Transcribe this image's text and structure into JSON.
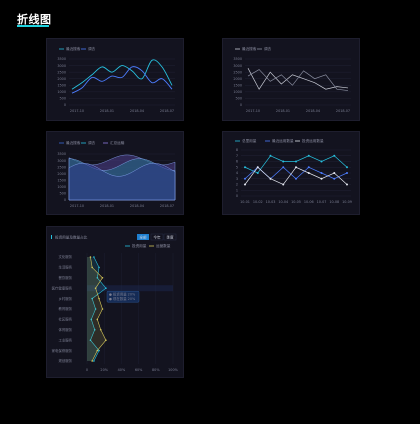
{
  "page_title": "折线图",
  "charts": {
    "c1": {
      "legend": [
        "最近搜索",
        "调去"
      ],
      "y_ticks": [
        "3500",
        "3000",
        "2500",
        "2000",
        "1500",
        "1000",
        "500",
        "0"
      ],
      "x_ticks": [
        "2017-10",
        "2018-01",
        "2018-04",
        "2018-07"
      ],
      "colors": [
        "#27c2e0",
        "#4c7dff"
      ],
      "series": [
        [
          1200,
          1700,
          2300,
          2900,
          2500,
          3000,
          2600,
          2000,
          3400,
          2900,
          1500
        ],
        [
          900,
          1300,
          2100,
          1800,
          2200,
          2100,
          2900,
          2600,
          1700,
          2000,
          1200
        ]
      ]
    },
    "c2": {
      "legend": [
        "最近搜索",
        "调去"
      ],
      "y_ticks": [
        "3500",
        "3000",
        "2500",
        "2000",
        "1500",
        "1000",
        "500",
        "0"
      ],
      "x_ticks": [
        "2017-10",
        "2018-01",
        "2018-04",
        "2018-07"
      ],
      "colors": [
        "#c9ccd6",
        "#8a8ea0"
      ],
      "series": [
        [
          2800,
          1200,
          2500,
          1600,
          2300,
          2000,
          1700,
          1200,
          1400,
          1300
        ],
        [
          2200,
          2700,
          1800,
          2300,
          1500,
          2600,
          2000,
          2300,
          1200,
          1100
        ]
      ]
    },
    "c3": {
      "legend": [
        "最近搜索",
        "调去",
        "汇总运输"
      ],
      "y_ticks": [
        "3500",
        "3000",
        "2500",
        "2000",
        "1500",
        "1000",
        "500",
        "0"
      ],
      "x_ticks": [
        "2017-10",
        "2018-01",
        "2018-04",
        "2018-07"
      ],
      "colors": [
        "#3c6ad6",
        "#27c2e0",
        "#8e7be0"
      ]
    },
    "c4": {
      "legend": [
        "总里用量",
        "最近运用数量",
        "投资运用数量"
      ],
      "y_ticks": [
        "8",
        "7",
        "6",
        "5",
        "4",
        "3",
        "2",
        "1",
        "0"
      ],
      "x_ticks": [
        "10-01",
        "10-02",
        "10-03",
        "10-04",
        "10-05",
        "10-06",
        "10-07",
        "10-08",
        "10-09"
      ],
      "colors": [
        "#27c2e0",
        "#4c7dff",
        "#e6e9f2"
      ],
      "series": [
        [
          5,
          4,
          7,
          6,
          6,
          7,
          6,
          7,
          5
        ],
        [
          3,
          5,
          3,
          5,
          3,
          5,
          4,
          3,
          4
        ],
        [
          2,
          5,
          3,
          2,
          5,
          4,
          3,
          4,
          2
        ]
      ]
    },
    "c5": {
      "title": "投资用量及数量占比",
      "tabs": [
        "全部",
        "今年",
        "季度"
      ],
      "legend": [
        "投资用量",
        "运营数量"
      ],
      "categories": [
        "文化服务",
        "生活服务",
        "餐饮服务",
        "医疗健康服务",
        "乡村服务",
        "教育服务",
        "社区服务",
        "体育服务",
        "工业服务",
        "家电保修服务",
        "规划服务"
      ],
      "x_ticks": [
        "0",
        "20%",
        "40%",
        "60%",
        "80%",
        "100%"
      ],
      "tooltip": [
        "● 投资用量 20%",
        "● 现在数量 20%"
      ],
      "colors": [
        "#27c2e0",
        "#d6c85a"
      ]
    }
  }
}
